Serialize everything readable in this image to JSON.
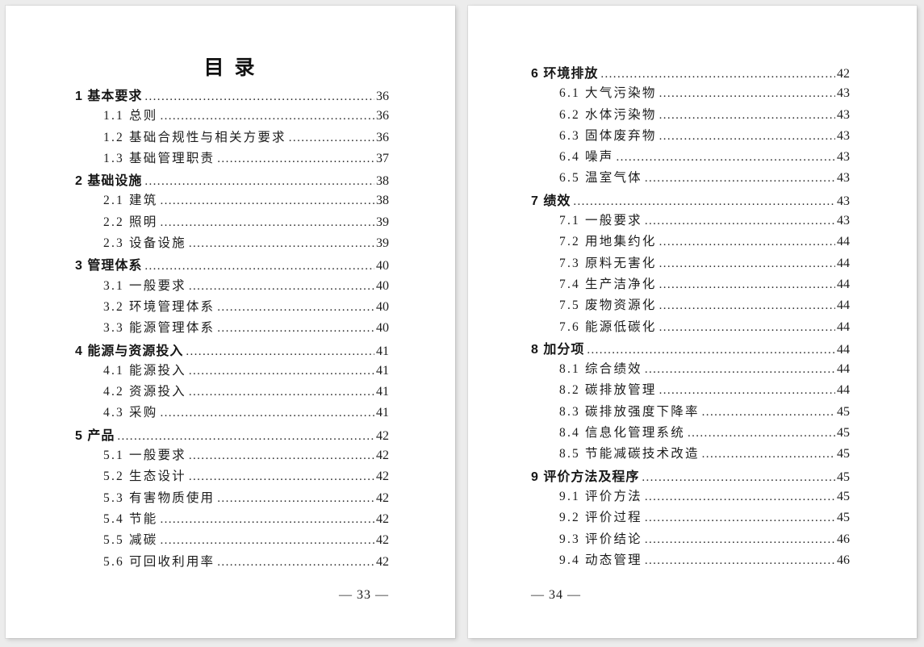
{
  "pages": [
    {
      "title": "目 录",
      "footer": "— 33 —",
      "entries": [
        {
          "level": 1,
          "label": "1 基本要求",
          "page": "36"
        },
        {
          "level": 2,
          "label": "1.1 总则",
          "page": "36"
        },
        {
          "level": 2,
          "label": "1.2 基础合规性与相关方要求",
          "page": "36"
        },
        {
          "level": 2,
          "label": "1.3 基础管理职责",
          "page": "37"
        },
        {
          "level": 1,
          "label": "2 基础设施",
          "page": "38"
        },
        {
          "level": 2,
          "label": "2.1 建筑",
          "page": "38"
        },
        {
          "level": 2,
          "label": "2.2 照明",
          "page": "39"
        },
        {
          "level": 2,
          "label": "2.3 设备设施",
          "page": "39"
        },
        {
          "level": 1,
          "label": "3 管理体系",
          "page": "40"
        },
        {
          "level": 2,
          "label": "3.1 一般要求",
          "page": "40"
        },
        {
          "level": 2,
          "label": "3.2 环境管理体系",
          "page": "40"
        },
        {
          "level": 2,
          "label": "3.3 能源管理体系",
          "page": "40"
        },
        {
          "level": 1,
          "label": "4 能源与资源投入",
          "page": "41"
        },
        {
          "level": 2,
          "label": "4.1 能源投入",
          "page": "41"
        },
        {
          "level": 2,
          "label": "4.2 资源投入",
          "page": "41"
        },
        {
          "level": 2,
          "label": "4.3 采购",
          "page": "41"
        },
        {
          "level": 1,
          "label": "5 产品",
          "page": "42"
        },
        {
          "level": 2,
          "label": "5.1 一般要求",
          "page": "42"
        },
        {
          "level": 2,
          "label": "5.2 生态设计",
          "page": "42"
        },
        {
          "level": 2,
          "label": "5.3 有害物质使用",
          "page": "42"
        },
        {
          "level": 2,
          "label": "5.4 节能",
          "page": "42"
        },
        {
          "level": 2,
          "label": "5.5 减碳",
          "page": "42"
        },
        {
          "level": 2,
          "label": "5.6 可回收利用率",
          "page": "42"
        }
      ]
    },
    {
      "title": "",
      "footer": "— 34 —",
      "entries": [
        {
          "level": 1,
          "label": "6 环境排放",
          "page": "42"
        },
        {
          "level": 2,
          "label": "6.1 大气污染物",
          "page": "43"
        },
        {
          "level": 2,
          "label": "6.2 水体污染物",
          "page": "43"
        },
        {
          "level": 2,
          "label": "6.3 固体废弃物",
          "page": "43"
        },
        {
          "level": 2,
          "label": "6.4 噪声",
          "page": "43"
        },
        {
          "level": 2,
          "label": "6.5 温室气体",
          "page": "43"
        },
        {
          "level": 1,
          "label": "7 绩效",
          "page": "43"
        },
        {
          "level": 2,
          "label": "7.1 一般要求",
          "page": "43"
        },
        {
          "level": 2,
          "label": "7.2 用地集约化",
          "page": "44"
        },
        {
          "level": 2,
          "label": "7.3 原料无害化",
          "page": "44"
        },
        {
          "level": 2,
          "label": "7.4 生产洁净化",
          "page": "44"
        },
        {
          "level": 2,
          "label": "7.5 废物资源化",
          "page": "44"
        },
        {
          "level": 2,
          "label": "7.6 能源低碳化",
          "page": "44"
        },
        {
          "level": 1,
          "label": "8 加分项",
          "page": "44"
        },
        {
          "level": 2,
          "label": "8.1 综合绩效",
          "page": "44"
        },
        {
          "level": 2,
          "label": "8.2 碳排放管理",
          "page": "44"
        },
        {
          "level": 2,
          "label": "8.3 碳排放强度下降率",
          "page": "45"
        },
        {
          "level": 2,
          "label": "8.4 信息化管理系统",
          "page": "45"
        },
        {
          "level": 2,
          "label": "8.5 节能减碳技术改造",
          "page": "45"
        },
        {
          "level": 1,
          "label": "9 评价方法及程序",
          "page": "45"
        },
        {
          "level": 2,
          "label": "9.1 评价方法",
          "page": "45"
        },
        {
          "level": 2,
          "label": "9.2 评价过程",
          "page": "45"
        },
        {
          "level": 2,
          "label": "9.3 评价结论",
          "page": "46"
        },
        {
          "level": 2,
          "label": "9.4 动态管理",
          "page": "46"
        }
      ]
    }
  ]
}
